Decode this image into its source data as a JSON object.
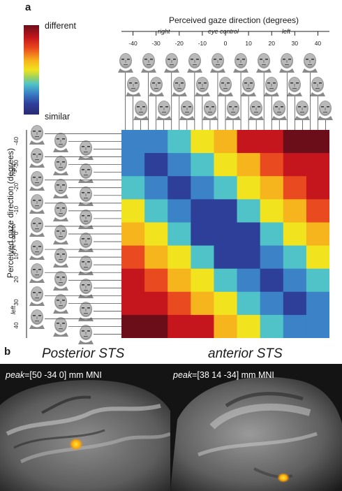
{
  "panel_a": {
    "letter": "a",
    "colorbar": {
      "top_label": "different",
      "bottom_label": "similar",
      "colors": [
        "#6b0e1a",
        "#c4161c",
        "#ea4a1f",
        "#f6b51c",
        "#f1e31d",
        "#9fd35a",
        "#4fc3c8",
        "#3b82c6",
        "#2e3f9a",
        "#2a2a70"
      ]
    },
    "x_axis_title": "Perceived gaze direction (degrees)",
    "y_axis_title": "Perceived gaze direction (degrees)",
    "tick_labels": [
      "-40",
      "-30",
      "-20",
      "-10",
      "0",
      "10",
      "20",
      "30",
      "40"
    ],
    "region_labels": {
      "right": "right",
      "eye_control": "eye control",
      "left": "left"
    }
  },
  "chart_data": {
    "type": "heatmap",
    "title": "",
    "xlabel": "Perceived gaze direction (degrees)",
    "ylabel": "Perceived gaze direction (degrees)",
    "x_categories": [
      "-40",
      "-30",
      "-20",
      "-10",
      "0",
      "10",
      "20",
      "30",
      "40"
    ],
    "y_categories": [
      "-40",
      "-30",
      "-20",
      "-10",
      "0",
      "10",
      "20",
      "30",
      "40"
    ],
    "scale": {
      "low": "similar",
      "high": "different"
    },
    "values": [
      [
        0.25,
        0.25,
        0.35,
        0.55,
        0.72,
        0.88,
        0.92,
        0.95,
        0.97
      ],
      [
        0.25,
        0.15,
        0.2,
        0.35,
        0.55,
        0.65,
        0.8,
        0.88,
        0.92
      ],
      [
        0.35,
        0.2,
        0.15,
        0.2,
        0.35,
        0.55,
        0.72,
        0.78,
        0.85
      ],
      [
        0.55,
        0.35,
        0.2,
        0.1,
        0.15,
        0.35,
        0.55,
        0.65,
        0.78
      ],
      [
        0.72,
        0.55,
        0.35,
        0.15,
        0.1,
        0.15,
        0.35,
        0.55,
        0.72
      ],
      [
        0.78,
        0.65,
        0.55,
        0.35,
        0.15,
        0.1,
        0.2,
        0.35,
        0.55
      ],
      [
        0.85,
        0.78,
        0.72,
        0.55,
        0.35,
        0.2,
        0.15,
        0.2,
        0.35
      ],
      [
        0.92,
        0.88,
        0.8,
        0.65,
        0.55,
        0.35,
        0.2,
        0.15,
        0.25
      ],
      [
        0.97,
        0.95,
        0.92,
        0.88,
        0.72,
        0.55,
        0.35,
        0.25,
        0.25
      ]
    ]
  },
  "panel_b": {
    "letter": "b",
    "left": {
      "title": "Posterior STS",
      "peak_word": "peak",
      "peak_rest": "=[50 -34 0] mm MNI"
    },
    "right": {
      "title": "anterior STS",
      "peak_word": "peak",
      "peak_rest": "=[38 14 -34] mm MNI"
    }
  }
}
